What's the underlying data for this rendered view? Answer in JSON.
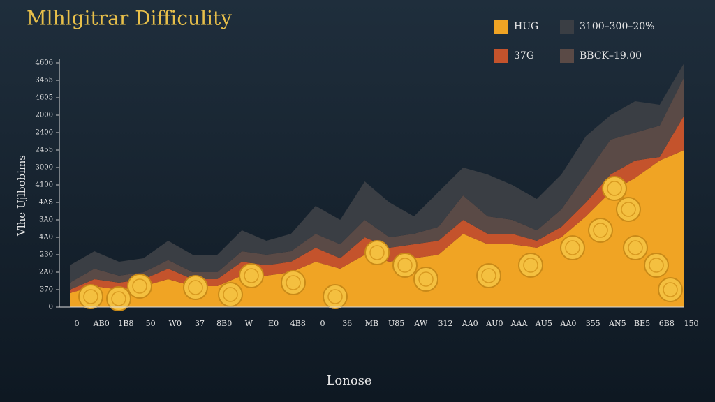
{
  "chart_data": {
    "type": "stacked_area",
    "title": "Mlhlgitrar Difficulity",
    "y_label": "Vlhe Ujlbobims",
    "x_label": "Lonose",
    "categories": [
      "0",
      "AB0",
      "1B8",
      "50",
      "W0",
      "37",
      "8B0",
      "W",
      "E0",
      "4B8",
      "0",
      "36",
      "MB",
      "U85",
      "AW",
      "312",
      "AA0",
      "AU0",
      "AAA",
      "AU5",
      "AA0",
      "355",
      "AN5",
      "BE5",
      "6B8",
      "150"
    ],
    "ylim": [
      0,
      14
    ],
    "yticks": [
      {
        "value": 0,
        "label": "0"
      },
      {
        "value": 1,
        "label": "370"
      },
      {
        "value": 2,
        "label": "2A0"
      },
      {
        "value": 3,
        "label": "230"
      },
      {
        "value": 4,
        "label": "4A0"
      },
      {
        "value": 5,
        "label": "3A0"
      },
      {
        "value": 6,
        "label": "4AS"
      },
      {
        "value": 7,
        "label": "4100"
      },
      {
        "value": 8,
        "label": "3000"
      },
      {
        "value": 9,
        "label": "2455"
      },
      {
        "value": 10,
        "label": "2400"
      },
      {
        "value": 11,
        "label": "2000"
      },
      {
        "value": 12,
        "label": "4605"
      },
      {
        "value": 13,
        "label": "3455"
      },
      {
        "value": 14,
        "label": "4606"
      }
    ],
    "series": [
      {
        "name": "HUG",
        "color": "#f0a424",
        "values": [
          0.8,
          1.2,
          1.0,
          1.2,
          1.6,
          1.2,
          1.2,
          1.8,
          1.8,
          2.0,
          2.6,
          2.2,
          3.0,
          2.6,
          2.8,
          3.0,
          4.2,
          3.6,
          3.6,
          3.4,
          4.0,
          5.2,
          6.6,
          7.4,
          8.4,
          9.0
        ]
      },
      {
        "name": "37G",
        "color": "#c4532c",
        "values": [
          0.2,
          0.4,
          0.4,
          0.4,
          0.6,
          0.4,
          0.4,
          0.8,
          0.6,
          0.6,
          0.8,
          0.6,
          1.0,
          0.8,
          0.8,
          0.8,
          0.8,
          0.6,
          0.6,
          0.4,
          0.6,
          0.8,
          1.0,
          1.0,
          0.2,
          2.0
        ]
      },
      {
        "name": "BBCK–19.00",
        "color": "#5a4a46",
        "values": [
          0.4,
          0.6,
          0.4,
          0.4,
          0.5,
          0.4,
          0.4,
          0.6,
          0.6,
          0.6,
          0.8,
          0.8,
          1.0,
          0.6,
          0.6,
          0.8,
          1.4,
          1.0,
          0.8,
          0.6,
          1.0,
          1.6,
          2.0,
          1.6,
          1.8,
          2.2
        ]
      },
      {
        "name": "3100–300–20%",
        "color": "#3a3e44",
        "values": [
          1.0,
          1.0,
          0.8,
          0.8,
          1.1,
          1.0,
          1.0,
          1.2,
          0.8,
          1.0,
          1.6,
          1.4,
          2.2,
          2.0,
          1.0,
          2.0,
          1.6,
          2.4,
          2.0,
          1.8,
          2.0,
          2.2,
          1.4,
          1.8,
          1.2,
          0.8
        ]
      }
    ]
  }
}
